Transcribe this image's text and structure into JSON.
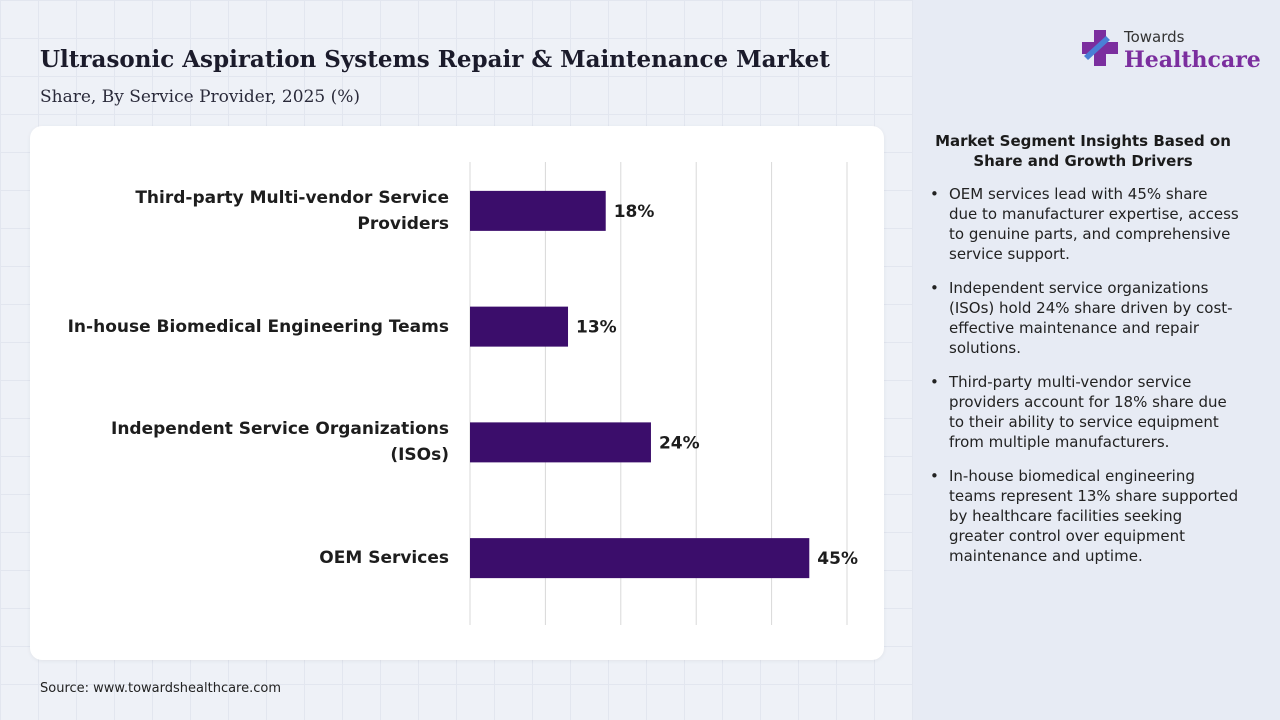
{
  "title": "Ultrasonic Aspiration Systems Repair & Maintenance Market",
  "subtitle": "Share, By Service Provider, 2025 (%)",
  "logo": {
    "line1": "Towards",
    "line2": "Healthcare"
  },
  "chart_data": {
    "type": "bar",
    "orientation": "horizontal",
    "categories": [
      "Third-party Multi-vendor Service Providers",
      "In-house Biomedical Engineering Teams",
      "Independent Service Organizations (ISOs)",
      "OEM Services"
    ],
    "values": [
      18,
      13,
      24,
      45
    ],
    "value_labels": [
      "18%",
      "13%",
      "24%",
      "45%"
    ],
    "color": "#3b0d6b",
    "xlim": [
      0,
      50
    ],
    "xticks": [
      0,
      10,
      20,
      30,
      40,
      50
    ],
    "grid": true
  },
  "insights": {
    "title": "Market Segment Insights Based on Share and Growth Drivers",
    "items": [
      "OEM services lead with 45% share due to manufacturer expertise, access to genuine parts, and comprehensive service support.",
      "Independent service organizations (ISOs) hold 24% share driven by cost-effective maintenance and repair solutions.",
      "Third-party multi-vendor service providers account for 18% share due to their ability to service equipment from multiple manufacturers.",
      "In-house biomedical engineering teams represent 13% share supported by healthcare facilities seeking greater control over equipment maintenance and uptime."
    ]
  },
  "source": "Source: www.towardshealthcare.com"
}
